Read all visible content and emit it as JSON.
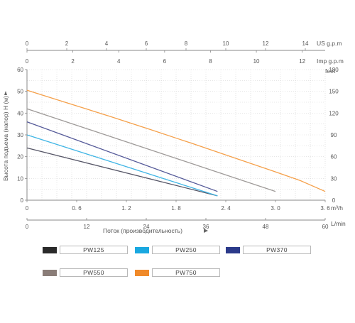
{
  "chart_data": {
    "type": "line",
    "title": "",
    "ylabel": "Высота подъема (напор) H (м)",
    "xlabel": "Поток (производительность)",
    "x_unit_m3h": "m³/h",
    "x_unit_lmin": "L/min",
    "y_unit_feet": "feet",
    "top_unit_us": "US g.p.m",
    "top_unit_imp": "Imp g.p.m",
    "xlim": [
      0,
      3.6
    ],
    "ylim": [
      0,
      60
    ],
    "grid": true,
    "legend_placement": "bottom",
    "x_ticks_m3h": [
      "0",
      "0. 6",
      "1. 2",
      "1. 8",
      "2. 4",
      "3. 0",
      "3. 6"
    ],
    "x_ticks_lmin": [
      "0",
      "12",
      "24",
      "36",
      "48",
      "60"
    ],
    "y_ticks_m": [
      "0",
      "10",
      "20",
      "30",
      "40",
      "50",
      "60"
    ],
    "y_ticks_feet": [
      "0",
      "30",
      "60",
      "90",
      "120",
      "150",
      "180"
    ],
    "us_gpm_ticks": [
      "0",
      "2",
      "4",
      "6",
      "8",
      "10",
      "12",
      "14"
    ],
    "imp_gpm_ticks": [
      "0",
      "2",
      "4",
      "6",
      "8",
      "10",
      "12"
    ],
    "series": [
      {
        "name": "PW125",
        "color": "#2a2a2a",
        "line_color": "#555566",
        "x": [
          0,
          2.3
        ],
        "y": [
          24,
          2
        ]
      },
      {
        "name": "PW250",
        "color": "#1aa8e0",
        "line_color": "#3fb5e5",
        "x": [
          0,
          2.3
        ],
        "y": [
          30,
          2
        ]
      },
      {
        "name": "PW370",
        "color": "#2b3a8a",
        "line_color": "#555a99",
        "x": [
          0,
          2.3
        ],
        "y": [
          36,
          4
        ]
      },
      {
        "name": "PW550",
        "color": "#8a7d78",
        "line_color": "#9e9a98",
        "x": [
          0,
          3.0
        ],
        "y": [
          42,
          4
        ]
      },
      {
        "name": "PW750",
        "color": "#f08a2a",
        "line_color": "#f5a04a",
        "x": [
          0,
          0.5,
          1.0,
          1.5,
          2.0,
          2.5,
          3.0,
          3.3,
          3.6
        ],
        "y": [
          50.5,
          44.5,
          38.5,
          32.3,
          26.0,
          19.5,
          13.0,
          9.0,
          4.0
        ]
      }
    ]
  }
}
